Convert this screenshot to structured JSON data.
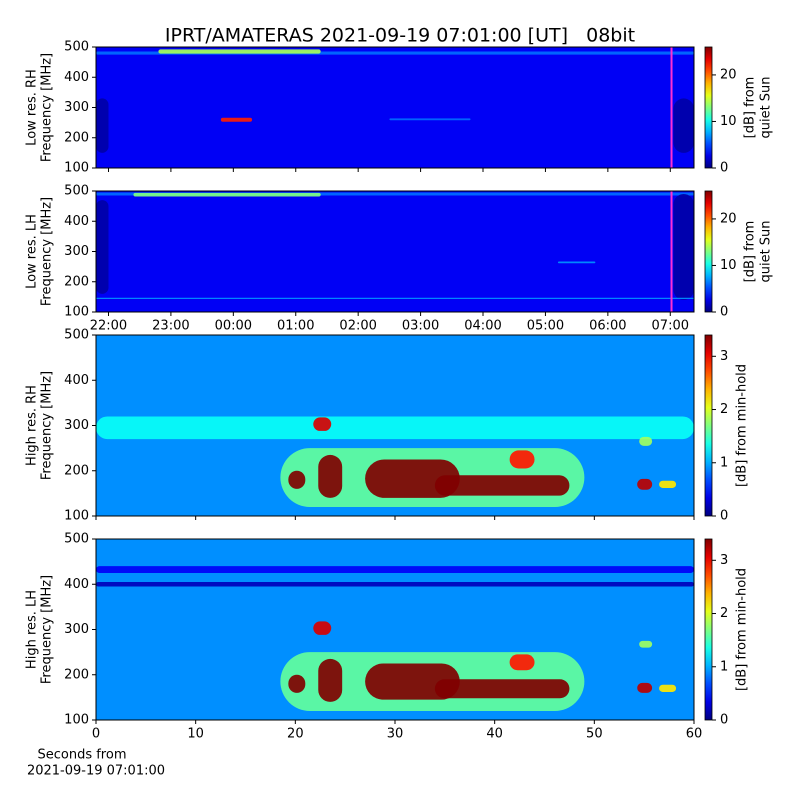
{
  "chart_data": [
    {
      "type": "heatmap",
      "title": "IPRT/AMATERAS 2021-09-19 07:01:00 [UT]   08bit",
      "ylabel": [
        "Low res. RH",
        "Frequency [MHz]"
      ],
      "xlim": [
        -2.2,
        7.38
      ],
      "xticks": [
        -2,
        -1,
        0,
        1,
        2,
        3,
        4,
        5,
        6,
        7
      ],
      "xticklabels": false,
      "ylim": [
        100,
        500
      ],
      "yticks": [
        100,
        200,
        300,
        400,
        500
      ],
      "colormap": "jet",
      "clim": [
        0,
        26
      ],
      "cticks": [
        0,
        10,
        20
      ],
      "clabel": [
        "[dB] from",
        "quiet Sun"
      ],
      "background": 3,
      "features": [
        {
          "x": [
            -2.2,
            7.38
          ],
          "y": [
            475,
            485
          ],
          "value": 6
        },
        {
          "x": [
            -1.2,
            1.4
          ],
          "y": [
            478,
            492
          ],
          "value": 14
        },
        {
          "x": [
            -0.2,
            0.3
          ],
          "y": [
            253,
            266
          ],
          "value": 22
        },
        {
          "x": [
            -2.2,
            -2.0
          ],
          "y": [
            150,
            330
          ],
          "value": 1
        },
        {
          "x": [
            7.05,
            7.38
          ],
          "y": [
            150,
            330
          ],
          "value": 1
        },
        {
          "x": [
            2.5,
            3.8
          ],
          "y": [
            258,
            264
          ],
          "value": 6
        }
      ],
      "marker": {
        "x": 7.02,
        "color": "#ff2fd0"
      }
    },
    {
      "type": "heatmap",
      "ylabel": [
        "Low res. LH",
        "Frequency [MHz]"
      ],
      "xlim": [
        -2.2,
        7.38
      ],
      "xticks": [
        {
          "value": -2,
          "label": "22:00"
        },
        {
          "value": -1,
          "label": "23:00"
        },
        {
          "value": 0,
          "label": "00:00"
        },
        {
          "value": 1,
          "label": "01:00"
        },
        {
          "value": 2,
          "label": "02:00"
        },
        {
          "value": 3,
          "label": "03:00"
        },
        {
          "value": 4,
          "label": "04:00"
        },
        {
          "value": 5,
          "label": "05:00"
        },
        {
          "value": 6,
          "label": "06:00"
        },
        {
          "value": 7,
          "label": "07:00"
        }
      ],
      "xticklabels": true,
      "ylim": [
        100,
        500
      ],
      "yticks": [
        100,
        200,
        300,
        400,
        500
      ],
      "colormap": "jet",
      "clim": [
        0,
        26
      ],
      "cticks": [
        0,
        10,
        20
      ],
      "clabel": [
        "[dB] from",
        "quiet Sun"
      ],
      "background": 3,
      "features": [
        {
          "x": [
            -2.2,
            7.38
          ],
          "y": [
            485,
            495
          ],
          "value": 6
        },
        {
          "x": [
            -1.6,
            1.4
          ],
          "y": [
            482,
            494
          ],
          "value": 13
        },
        {
          "x": [
            -2.2,
            -2.0
          ],
          "y": [
            160,
            470
          ],
          "value": 1
        },
        {
          "x": [
            7.05,
            7.38
          ],
          "y": [
            140,
            490
          ],
          "value": 1
        },
        {
          "x": [
            5.2,
            5.8
          ],
          "y": [
            261,
            267
          ],
          "value": 7
        },
        {
          "x": [
            -2.2,
            7.38
          ],
          "y": [
            143,
            147
          ],
          "value": 7
        }
      ],
      "marker": {
        "x": 7.02,
        "color": "#ff2fd0"
      }
    },
    {
      "type": "heatmap",
      "ylabel": [
        "High res. RH",
        "Frequency [MHz]"
      ],
      "xlim": [
        0,
        60
      ],
      "xticks": [
        0,
        10,
        20,
        30,
        40,
        50,
        60
      ],
      "xticklabels": false,
      "ylim": [
        100,
        500
      ],
      "yticks": [
        100,
        200,
        300,
        400,
        500
      ],
      "colormap": "jet",
      "clim": [
        0,
        3.4
      ],
      "cticks": [
        0,
        1,
        2,
        3
      ],
      "clabel": [
        "[dB] from min-hold"
      ],
      "background": 0.9,
      "features": [
        {
          "x": [
            0,
            60
          ],
          "y": [
            270,
            320
          ],
          "value": 1.3
        },
        {
          "x": [
            18.5,
            49
          ],
          "y": [
            120,
            250
          ],
          "value": 1.6
        },
        {
          "x": [
            19.3,
            21
          ],
          "y": [
            160,
            200
          ],
          "value": 3.4
        },
        {
          "x": [
            21.8,
            23.6
          ],
          "y": [
            288,
            318
          ],
          "value": 3.1
        },
        {
          "x": [
            22.3,
            24.7
          ],
          "y": [
            140,
            235
          ],
          "value": 3.4
        },
        {
          "x": [
            27,
            36.5
          ],
          "y": [
            140,
            225
          ],
          "value": 3.4
        },
        {
          "x": [
            34,
            47.5
          ],
          "y": [
            145,
            190
          ],
          "value": 3.4
        },
        {
          "x": [
            41.5,
            44
          ],
          "y": [
            205,
            245
          ],
          "value": 2.9
        },
        {
          "x": [
            54.3,
            55.8
          ],
          "y": [
            158,
            182
          ],
          "value": 3.2
        },
        {
          "x": [
            56.5,
            58.2
          ],
          "y": [
            162,
            178
          ],
          "value": 2.2
        },
        {
          "x": [
            54.5,
            55.8
          ],
          "y": [
            255,
            275
          ],
          "value": 1.8
        }
      ]
    },
    {
      "type": "heatmap",
      "ylabel": [
        "High res. LH",
        "Frequency [MHz]"
      ],
      "xlim": [
        0,
        60
      ],
      "xticks": [
        0,
        10,
        20,
        30,
        40,
        50,
        60
      ],
      "xticklabels": true,
      "xlabel": [
        "Seconds from",
        "2021-09-19 07:01:00"
      ],
      "ylim": [
        100,
        500
      ],
      "yticks": [
        100,
        200,
        300,
        400,
        500
      ],
      "colormap": "jet",
      "clim": [
        0,
        3.4
      ],
      "cticks": [
        0,
        1,
        2,
        3
      ],
      "clabel": [
        "[dB] from min-hold"
      ],
      "background": 0.9,
      "features": [
        {
          "x": [
            0,
            60
          ],
          "y": [
            395,
            405
          ],
          "value": 0.2
        },
        {
          "x": [
            0,
            60
          ],
          "y": [
            425,
            440
          ],
          "value": 0.4
        },
        {
          "x": [
            18.5,
            49
          ],
          "y": [
            120,
            250
          ],
          "value": 1.6
        },
        {
          "x": [
            19.3,
            21
          ],
          "y": [
            160,
            200
          ],
          "value": 3.4
        },
        {
          "x": [
            21.8,
            23.6
          ],
          "y": [
            288,
            318
          ],
          "value": 3.1
        },
        {
          "x": [
            22.3,
            24.7
          ],
          "y": [
            140,
            235
          ],
          "value": 3.4
        },
        {
          "x": [
            27,
            36.5
          ],
          "y": [
            145,
            225
          ],
          "value": 3.4
        },
        {
          "x": [
            34,
            47.5
          ],
          "y": [
            148,
            190
          ],
          "value": 3.4
        },
        {
          "x": [
            41.5,
            44
          ],
          "y": [
            210,
            245
          ],
          "value": 2.9
        },
        {
          "x": [
            54.3,
            55.8
          ],
          "y": [
            160,
            182
          ],
          "value": 3.2
        },
        {
          "x": [
            56.5,
            58.2
          ],
          "y": [
            162,
            178
          ],
          "value": 2.2
        },
        {
          "x": [
            54.5,
            55.8
          ],
          "y": [
            260,
            275
          ],
          "value": 1.8
        }
      ]
    }
  ]
}
